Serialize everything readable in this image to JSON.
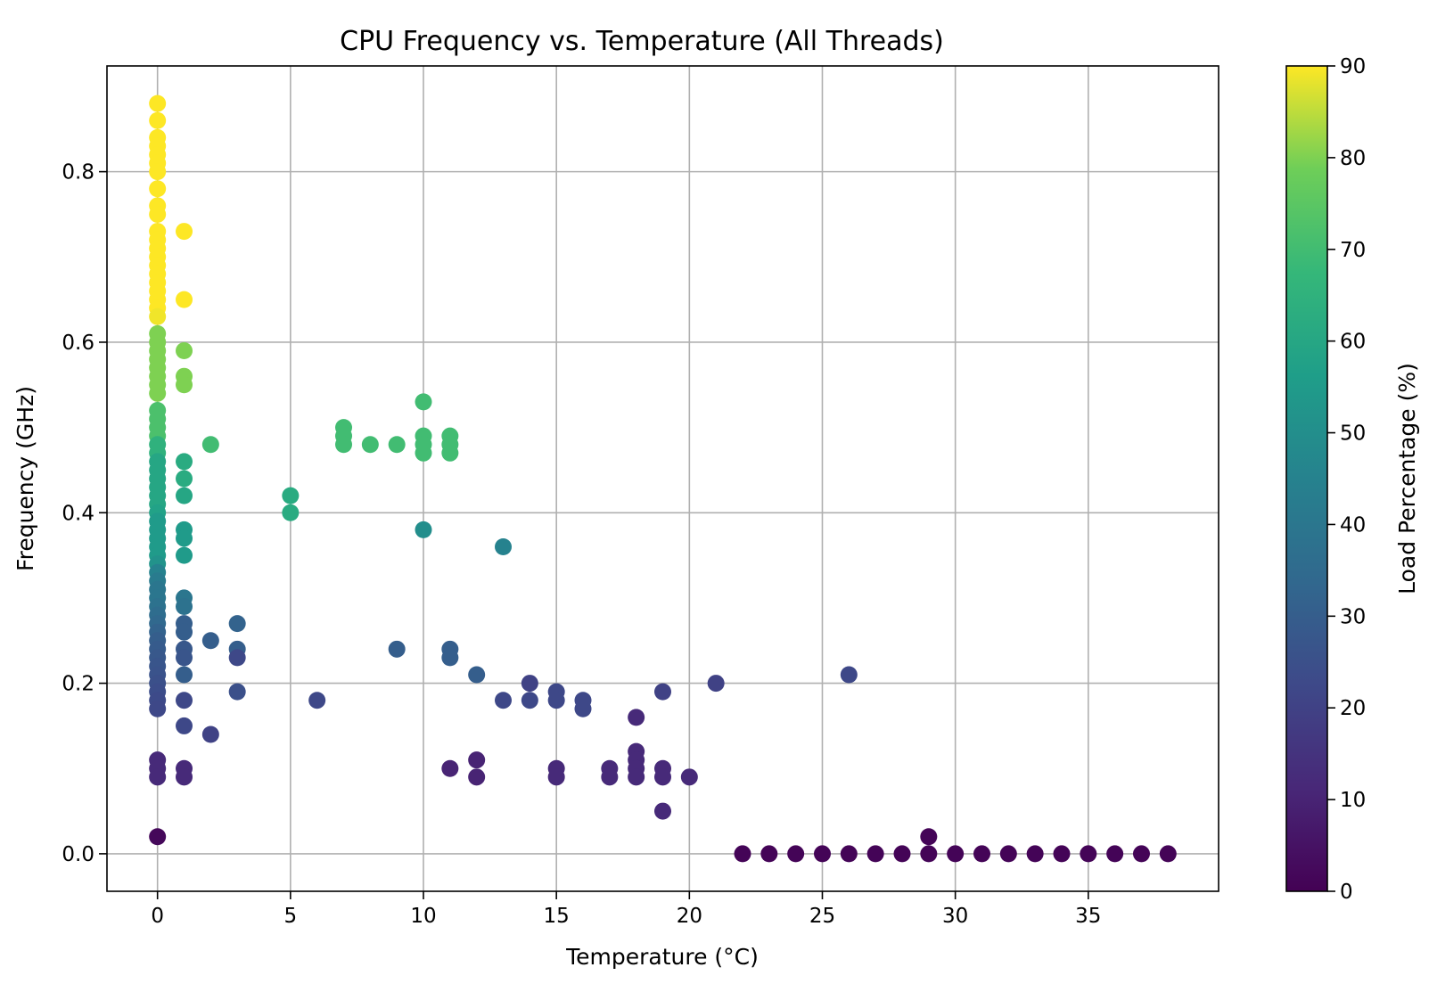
{
  "chart_data": {
    "type": "scatter",
    "title": "CPU Frequency vs. Temperature (All Threads)",
    "xlabel": "Temperature (°C)",
    "ylabel": "Frequency (GHz)",
    "xlim": [
      -1.9,
      39.9
    ],
    "ylim": [
      -0.044,
      0.924
    ],
    "xticks": [
      0,
      5,
      10,
      15,
      20,
      25,
      30,
      35
    ],
    "yticks": [
      0.0,
      0.2,
      0.4,
      0.6,
      0.8
    ],
    "ytick_labels": [
      "0.0",
      "0.2",
      "0.4",
      "0.6",
      "0.8"
    ],
    "grid": true,
    "colormap": "viridis",
    "colorbar": {
      "label": "Load Percentage (%)",
      "range": [
        0,
        90
      ],
      "ticks": [
        0,
        10,
        20,
        30,
        40,
        50,
        60,
        70,
        80,
        90
      ]
    },
    "points": [
      {
        "x": 0,
        "y": 0.88,
        "c": 90
      },
      {
        "x": 0,
        "y": 0.86,
        "c": 90
      },
      {
        "x": 0,
        "y": 0.84,
        "c": 90
      },
      {
        "x": 0,
        "y": 0.83,
        "c": 90
      },
      {
        "x": 0,
        "y": 0.82,
        "c": 90
      },
      {
        "x": 0,
        "y": 0.81,
        "c": 90
      },
      {
        "x": 0,
        "y": 0.8,
        "c": 90
      },
      {
        "x": 0,
        "y": 0.78,
        "c": 90
      },
      {
        "x": 0,
        "y": 0.76,
        "c": 90
      },
      {
        "x": 0,
        "y": 0.75,
        "c": 90
      },
      {
        "x": 0,
        "y": 0.73,
        "c": 90
      },
      {
        "x": 0,
        "y": 0.72,
        "c": 90
      },
      {
        "x": 0,
        "y": 0.71,
        "c": 90
      },
      {
        "x": 0,
        "y": 0.7,
        "c": 90
      },
      {
        "x": 0,
        "y": 0.69,
        "c": 90
      },
      {
        "x": 0,
        "y": 0.68,
        "c": 90
      },
      {
        "x": 0,
        "y": 0.67,
        "c": 90
      },
      {
        "x": 0,
        "y": 0.66,
        "c": 90
      },
      {
        "x": 0,
        "y": 0.65,
        "c": 90
      },
      {
        "x": 0,
        "y": 0.64,
        "c": 90
      },
      {
        "x": 0,
        "y": 0.63,
        "c": 89
      },
      {
        "x": 0,
        "y": 0.61,
        "c": 80
      },
      {
        "x": 0,
        "y": 0.6,
        "c": 80
      },
      {
        "x": 0,
        "y": 0.59,
        "c": 80
      },
      {
        "x": 0,
        "y": 0.58,
        "c": 80
      },
      {
        "x": 0,
        "y": 0.57,
        "c": 80
      },
      {
        "x": 0,
        "y": 0.56,
        "c": 80
      },
      {
        "x": 0,
        "y": 0.55,
        "c": 80
      },
      {
        "x": 0,
        "y": 0.54,
        "c": 80
      },
      {
        "x": 0,
        "y": 0.52,
        "c": 72
      },
      {
        "x": 0,
        "y": 0.51,
        "c": 72
      },
      {
        "x": 0,
        "y": 0.5,
        "c": 72
      },
      {
        "x": 0,
        "y": 0.49,
        "c": 72
      },
      {
        "x": 0,
        "y": 0.48,
        "c": 65
      },
      {
        "x": 0,
        "y": 0.47,
        "c": 65
      },
      {
        "x": 0,
        "y": 0.46,
        "c": 60
      },
      {
        "x": 0,
        "y": 0.45,
        "c": 60
      },
      {
        "x": 0,
        "y": 0.44,
        "c": 60
      },
      {
        "x": 0,
        "y": 0.43,
        "c": 60
      },
      {
        "x": 0,
        "y": 0.42,
        "c": 60
      },
      {
        "x": 0,
        "y": 0.41,
        "c": 60
      },
      {
        "x": 0,
        "y": 0.4,
        "c": 58
      },
      {
        "x": 0,
        "y": 0.39,
        "c": 55
      },
      {
        "x": 0,
        "y": 0.38,
        "c": 55
      },
      {
        "x": 0,
        "y": 0.37,
        "c": 55
      },
      {
        "x": 0,
        "y": 0.36,
        "c": 55
      },
      {
        "x": 0,
        "y": 0.35,
        "c": 55
      },
      {
        "x": 0,
        "y": 0.34,
        "c": 52
      },
      {
        "x": 0,
        "y": 0.33,
        "c": 45
      },
      {
        "x": 0,
        "y": 0.32,
        "c": 42
      },
      {
        "x": 0,
        "y": 0.31,
        "c": 40
      },
      {
        "x": 0,
        "y": 0.3,
        "c": 40
      },
      {
        "x": 0,
        "y": 0.29,
        "c": 38
      },
      {
        "x": 0,
        "y": 0.28,
        "c": 36
      },
      {
        "x": 0,
        "y": 0.27,
        "c": 34
      },
      {
        "x": 0,
        "y": 0.26,
        "c": 32
      },
      {
        "x": 0,
        "y": 0.25,
        "c": 30
      },
      {
        "x": 0,
        "y": 0.24,
        "c": 29
      },
      {
        "x": 0,
        "y": 0.23,
        "c": 28
      },
      {
        "x": 0,
        "y": 0.22,
        "c": 27
      },
      {
        "x": 0,
        "y": 0.21,
        "c": 26
      },
      {
        "x": 0,
        "y": 0.2,
        "c": 25
      },
      {
        "x": 0,
        "y": 0.19,
        "c": 24
      },
      {
        "x": 0,
        "y": 0.18,
        "c": 23
      },
      {
        "x": 0,
        "y": 0.17,
        "c": 22
      },
      {
        "x": 0,
        "y": 0.11,
        "c": 12
      },
      {
        "x": 0,
        "y": 0.1,
        "c": 12
      },
      {
        "x": 0,
        "y": 0.09,
        "c": 12
      },
      {
        "x": 0,
        "y": 0.02,
        "c": 2
      },
      {
        "x": 1,
        "y": 0.73,
        "c": 90
      },
      {
        "x": 1,
        "y": 0.65,
        "c": 90
      },
      {
        "x": 1,
        "y": 0.59,
        "c": 80
      },
      {
        "x": 1,
        "y": 0.56,
        "c": 80
      },
      {
        "x": 1,
        "y": 0.55,
        "c": 80
      },
      {
        "x": 1,
        "y": 0.46,
        "c": 62
      },
      {
        "x": 1,
        "y": 0.44,
        "c": 62
      },
      {
        "x": 1,
        "y": 0.42,
        "c": 60
      },
      {
        "x": 1,
        "y": 0.38,
        "c": 55
      },
      {
        "x": 1,
        "y": 0.37,
        "c": 55
      },
      {
        "x": 1,
        "y": 0.35,
        "c": 55
      },
      {
        "x": 1,
        "y": 0.3,
        "c": 40
      },
      {
        "x": 1,
        "y": 0.29,
        "c": 38
      },
      {
        "x": 1,
        "y": 0.27,
        "c": 30
      },
      {
        "x": 1,
        "y": 0.26,
        "c": 30
      },
      {
        "x": 1,
        "y": 0.24,
        "c": 28
      },
      {
        "x": 1,
        "y": 0.23,
        "c": 27
      },
      {
        "x": 1,
        "y": 0.21,
        "c": 30
      },
      {
        "x": 1,
        "y": 0.18,
        "c": 22
      },
      {
        "x": 1,
        "y": 0.15,
        "c": 22
      },
      {
        "x": 1,
        "y": 0.1,
        "c": 12
      },
      {
        "x": 1,
        "y": 0.09,
        "c": 12
      },
      {
        "x": 2,
        "y": 0.48,
        "c": 70
      },
      {
        "x": 2,
        "y": 0.25,
        "c": 30
      },
      {
        "x": 2,
        "y": 0.14,
        "c": 20
      },
      {
        "x": 3,
        "y": 0.27,
        "c": 32
      },
      {
        "x": 3,
        "y": 0.24,
        "c": 30
      },
      {
        "x": 3,
        "y": 0.23,
        "c": 22
      },
      {
        "x": 3,
        "y": 0.19,
        "c": 25
      },
      {
        "x": 5,
        "y": 0.42,
        "c": 62
      },
      {
        "x": 5,
        "y": 0.4,
        "c": 62
      },
      {
        "x": 6,
        "y": 0.18,
        "c": 22
      },
      {
        "x": 7,
        "y": 0.5,
        "c": 70
      },
      {
        "x": 7,
        "y": 0.49,
        "c": 70
      },
      {
        "x": 7,
        "y": 0.48,
        "c": 70
      },
      {
        "x": 8,
        "y": 0.48,
        "c": 70
      },
      {
        "x": 9,
        "y": 0.48,
        "c": 70
      },
      {
        "x": 9,
        "y": 0.24,
        "c": 30
      },
      {
        "x": 10,
        "y": 0.53,
        "c": 70
      },
      {
        "x": 10,
        "y": 0.49,
        "c": 70
      },
      {
        "x": 10,
        "y": 0.48,
        "c": 70
      },
      {
        "x": 10,
        "y": 0.47,
        "c": 70
      },
      {
        "x": 10,
        "y": 0.38,
        "c": 50
      },
      {
        "x": 11,
        "y": 0.49,
        "c": 70
      },
      {
        "x": 11,
        "y": 0.48,
        "c": 70
      },
      {
        "x": 11,
        "y": 0.47,
        "c": 70
      },
      {
        "x": 11,
        "y": 0.24,
        "c": 30
      },
      {
        "x": 11,
        "y": 0.23,
        "c": 30
      },
      {
        "x": 11,
        "y": 0.1,
        "c": 10
      },
      {
        "x": 12,
        "y": 0.21,
        "c": 30
      },
      {
        "x": 12,
        "y": 0.11,
        "c": 10
      },
      {
        "x": 12,
        "y": 0.09,
        "c": 10
      },
      {
        "x": 13,
        "y": 0.36,
        "c": 45
      },
      {
        "x": 13,
        "y": 0.18,
        "c": 22
      },
      {
        "x": 14,
        "y": 0.2,
        "c": 20
      },
      {
        "x": 14,
        "y": 0.18,
        "c": 22
      },
      {
        "x": 15,
        "y": 0.19,
        "c": 22
      },
      {
        "x": 15,
        "y": 0.18,
        "c": 22
      },
      {
        "x": 15,
        "y": 0.1,
        "c": 12
      },
      {
        "x": 15,
        "y": 0.09,
        "c": 12
      },
      {
        "x": 16,
        "y": 0.18,
        "c": 22
      },
      {
        "x": 16,
        "y": 0.17,
        "c": 22
      },
      {
        "x": 17,
        "y": 0.1,
        "c": 12
      },
      {
        "x": 17,
        "y": 0.09,
        "c": 12
      },
      {
        "x": 18,
        "y": 0.16,
        "c": 12
      },
      {
        "x": 18,
        "y": 0.12,
        "c": 12
      },
      {
        "x": 18,
        "y": 0.11,
        "c": 12
      },
      {
        "x": 18,
        "y": 0.1,
        "c": 12
      },
      {
        "x": 18,
        "y": 0.09,
        "c": 12
      },
      {
        "x": 19,
        "y": 0.19,
        "c": 20
      },
      {
        "x": 19,
        "y": 0.1,
        "c": 12
      },
      {
        "x": 19,
        "y": 0.09,
        "c": 12
      },
      {
        "x": 19,
        "y": 0.05,
        "c": 12
      },
      {
        "x": 20,
        "y": 0.09,
        "c": 12
      },
      {
        "x": 21,
        "y": 0.2,
        "c": 20
      },
      {
        "x": 22,
        "y": 0.0,
        "c": 1
      },
      {
        "x": 23,
        "y": 0.0,
        "c": 1
      },
      {
        "x": 24,
        "y": 0.0,
        "c": 1
      },
      {
        "x": 25,
        "y": 0.0,
        "c": 1
      },
      {
        "x": 26,
        "y": 0.0,
        "c": 1
      },
      {
        "x": 26,
        "y": 0.21,
        "c": 22
      },
      {
        "x": 27,
        "y": 0.0,
        "c": 1
      },
      {
        "x": 28,
        "y": 0.0,
        "c": 1
      },
      {
        "x": 29,
        "y": 0.02,
        "c": 1
      },
      {
        "x": 29,
        "y": 0.0,
        "c": 1
      },
      {
        "x": 30,
        "y": 0.0,
        "c": 1
      },
      {
        "x": 31,
        "y": 0.0,
        "c": 1
      },
      {
        "x": 32,
        "y": 0.0,
        "c": 1
      },
      {
        "x": 33,
        "y": 0.0,
        "c": 1
      },
      {
        "x": 34,
        "y": 0.0,
        "c": 1
      },
      {
        "x": 35,
        "y": 0.0,
        "c": 1
      },
      {
        "x": 36,
        "y": 0.0,
        "c": 1
      },
      {
        "x": 37,
        "y": 0.0,
        "c": 1
      },
      {
        "x": 38,
        "y": 0.0,
        "c": 1
      }
    ]
  }
}
